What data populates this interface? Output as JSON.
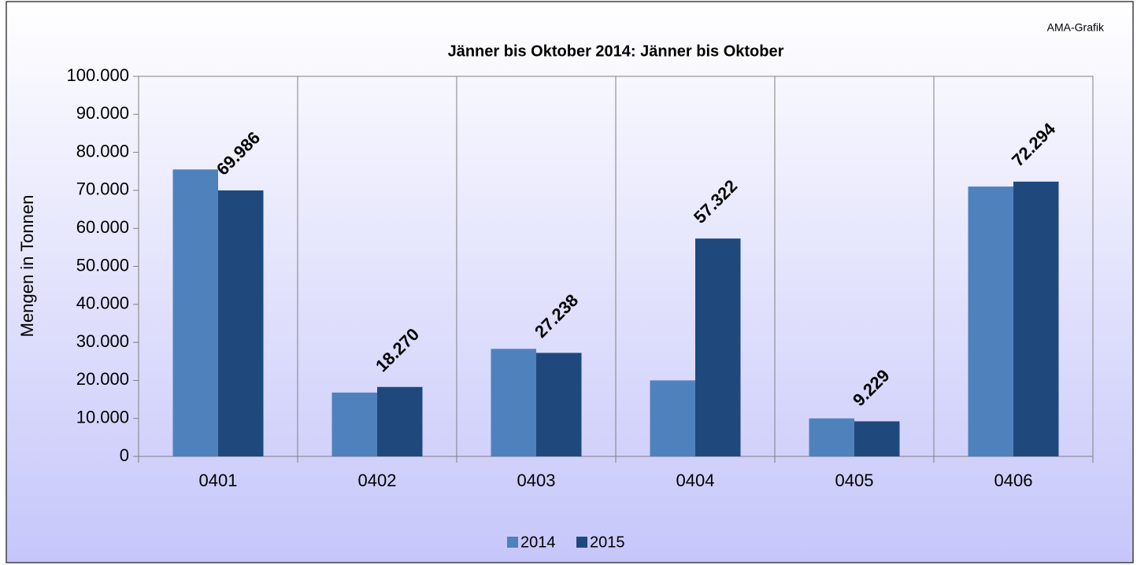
{
  "chart_data": {
    "type": "bar",
    "title": "Jänner bis Oktober 2014: Jänner bis Oktober",
    "source": "AMA-Grafik",
    "ylabel": "Mengen in Tonnen",
    "categories": [
      "0401",
      "0402",
      "0403",
      "0404",
      "0405",
      "0406"
    ],
    "series": [
      {
        "name": "2014",
        "color": "#4f81bd",
        "values": [
          75500,
          16800,
          28300,
          20000,
          10000,
          71000
        ]
      },
      {
        "name": "2015",
        "color": "#1f497d",
        "values": [
          69986,
          18270,
          27238,
          57322,
          9229,
          72294
        ],
        "value_labels": [
          "69.986",
          "18.270",
          "27.238",
          "57.322",
          "9.229",
          "72.294"
        ]
      }
    ],
    "ylim": [
      0,
      100000
    ],
    "yticks": [
      0,
      {
        "value": 10000,
        "label": "10.000"
      },
      {
        "value": 20000,
        "label": "20.000"
      },
      {
        "value": 30000,
        "label": "30.000"
      },
      {
        "value": 40000,
        "label": "40.000"
      },
      {
        "value": 50000,
        "label": "50.000"
      },
      {
        "value": 60000,
        "label": "60.000"
      },
      {
        "value": 70000,
        "label": "70.000"
      },
      {
        "value": 80000,
        "label": "80.000"
      },
      {
        "value": 90000,
        "label": "90.000"
      },
      {
        "value": 100000,
        "label": "100.000"
      }
    ],
    "legend": "bottom"
  }
}
